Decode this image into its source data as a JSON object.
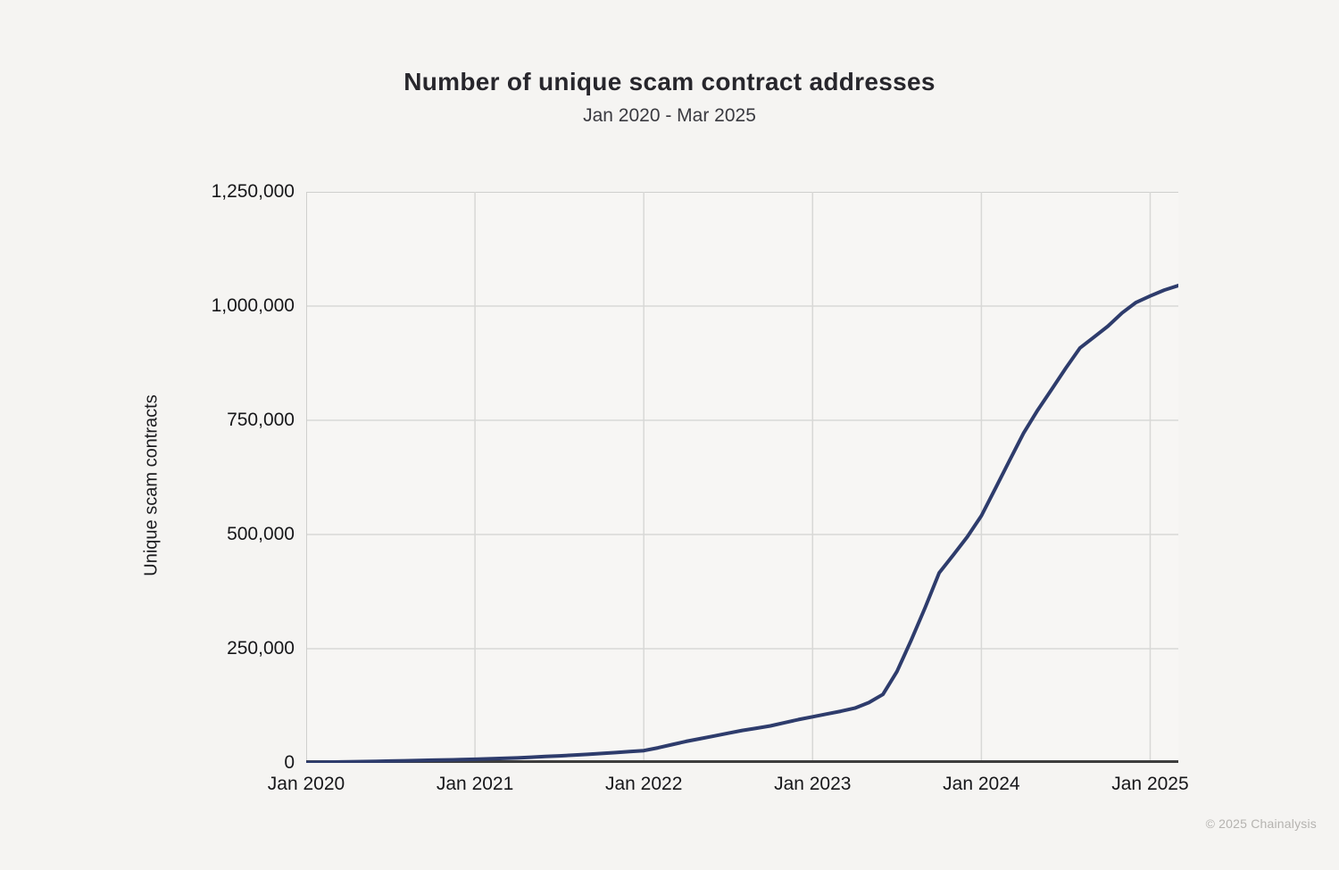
{
  "header": {
    "title": "Number of unique scam contract addresses",
    "subtitle": "Jan 2020 - Mar 2025"
  },
  "footer": {
    "copyright": "© 2025 Chainalysis"
  },
  "colors": {
    "background": "#f5f4f2",
    "plot_background": "#f7f6f4",
    "grid": "#d8d8d6",
    "plot_border": "#cfcfcd",
    "axis": "#3d3d3d",
    "line": "#2e3c6c",
    "title_text": "#27262c",
    "subtitle_text": "#3a3a40",
    "tick_text": "#17171a",
    "footer_text": "#b5b3b0"
  },
  "chart_data": {
    "type": "line",
    "title": "Number of unique scam contract addresses",
    "subtitle": "Jan 2020 - Mar 2025",
    "xlabel": "",
    "ylabel": "Unique scam contracts",
    "ylim": [
      0,
      1250000
    ],
    "grid": true,
    "legend": "none",
    "y_ticks": [
      {
        "label": "0",
        "value": 0
      },
      {
        "label": "250,000",
        "value": 250000
      },
      {
        "label": "500,000",
        "value": 500000
      },
      {
        "label": "750,000",
        "value": 750000
      },
      {
        "label": "1,000,000",
        "value": 1000000
      },
      {
        "label": "1,250,000",
        "value": 1250000
      }
    ],
    "x_ticks": [
      {
        "label": "Jan 2020",
        "month_index": 0
      },
      {
        "label": "Jan 2021",
        "month_index": 12
      },
      {
        "label": "Jan 2022",
        "month_index": 24
      },
      {
        "label": "Jan 2023",
        "month_index": 36
      },
      {
        "label": "Jan 2024",
        "month_index": 48
      },
      {
        "label": "Jan 2025",
        "month_index": 60
      }
    ],
    "x": [
      "2020-01",
      "2020-02",
      "2020-03",
      "2020-04",
      "2020-05",
      "2020-06",
      "2020-07",
      "2020-08",
      "2020-09",
      "2020-10",
      "2020-11",
      "2020-12",
      "2021-01",
      "2021-02",
      "2021-03",
      "2021-04",
      "2021-05",
      "2021-06",
      "2021-07",
      "2021-08",
      "2021-09",
      "2021-10",
      "2021-11",
      "2021-12",
      "2022-01",
      "2022-02",
      "2022-03",
      "2022-04",
      "2022-05",
      "2022-06",
      "2022-07",
      "2022-08",
      "2022-09",
      "2022-10",
      "2022-11",
      "2022-12",
      "2023-01",
      "2023-02",
      "2023-03",
      "2023-04",
      "2023-05",
      "2023-06",
      "2023-07",
      "2023-08",
      "2023-09",
      "2023-10",
      "2023-11",
      "2023-12",
      "2024-01",
      "2024-02",
      "2024-03",
      "2024-04",
      "2024-05",
      "2024-06",
      "2024-07",
      "2024-08",
      "2024-09",
      "2024-10",
      "2024-11",
      "2024-12",
      "2025-01",
      "2025-02",
      "2025-03"
    ],
    "series": [
      {
        "name": "Unique scam contract addresses",
        "color": "#2e3c6c",
        "values": [
          1000,
          1500,
          2000,
          2500,
          3000,
          3500,
          4100,
          4700,
          5300,
          6000,
          6600,
          7300,
          8000,
          9000,
          10000,
          11000,
          12500,
          14000,
          15500,
          17000,
          18800,
          20700,
          22700,
          24800,
          27000,
          33000,
          40000,
          47000,
          53000,
          59000,
          65000,
          71000,
          76000,
          81000,
          88000,
          95000,
          101000,
          107000,
          113000,
          120000,
          132000,
          150000,
          200000,
          268000,
          340000,
          416000,
          455000,
          495000,
          541000,
          601000,
          662000,
          722000,
          772000,
          818000,
          864000,
          908000,
          932000,
          956000,
          985000,
          1008000,
          1022000,
          1035000,
          1045000
        ]
      }
    ]
  }
}
